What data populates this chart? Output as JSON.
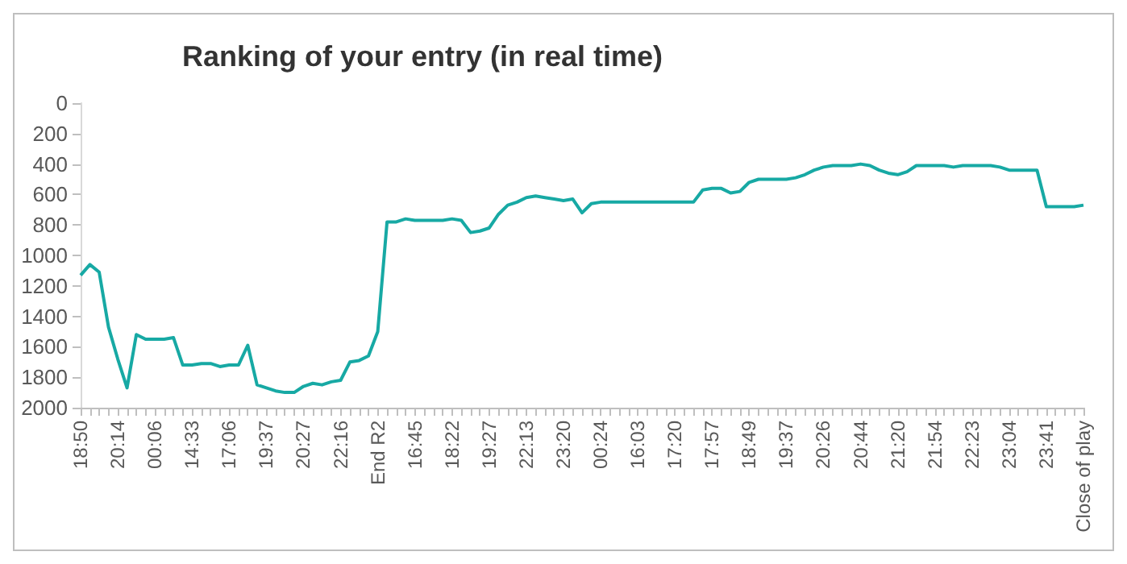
{
  "chart_data": {
    "type": "line",
    "title": "Ranking of your entry (in real time)",
    "categories": [
      "18:50",
      null,
      null,
      null,
      "20:14",
      null,
      null,
      null,
      "00:06",
      null,
      null,
      null,
      "14:33",
      null,
      null,
      null,
      "17:06",
      null,
      null,
      null,
      "19:37",
      null,
      null,
      null,
      "20:27",
      null,
      null,
      null,
      "22:16",
      null,
      null,
      null,
      "End R2",
      null,
      null,
      null,
      "16:45",
      null,
      null,
      null,
      "18:22",
      null,
      null,
      null,
      "19:27",
      null,
      null,
      null,
      "22:13",
      null,
      null,
      null,
      "23:20",
      null,
      null,
      null,
      "00:24",
      null,
      null,
      null,
      "16:03",
      null,
      null,
      null,
      "17:20",
      null,
      null,
      null,
      "17:57",
      null,
      null,
      null,
      "18:49",
      null,
      null,
      null,
      "19:37",
      null,
      null,
      null,
      "20:26",
      null,
      null,
      null,
      "20:44",
      null,
      null,
      null,
      "21:20",
      null,
      null,
      null,
      "21:54",
      null,
      null,
      null,
      "22:23",
      null,
      null,
      null,
      "23:04",
      null,
      null,
      null,
      "23:41",
      null,
      null,
      null,
      "Close of play"
    ],
    "values": [
      1130,
      1060,
      1110,
      1470,
      1680,
      1870,
      1520,
      1550,
      1550,
      1550,
      1540,
      1720,
      1720,
      1710,
      1710,
      1730,
      1720,
      1720,
      1590,
      1850,
      1870,
      1890,
      1900,
      1900,
      1860,
      1840,
      1850,
      1830,
      1820,
      1700,
      1690,
      1660,
      1500,
      780,
      780,
      760,
      770,
      770,
      770,
      770,
      760,
      770,
      850,
      840,
      820,
      730,
      670,
      650,
      620,
      610,
      620,
      630,
      640,
      630,
      720,
      660,
      650,
      650,
      650,
      650,
      650,
      650,
      650,
      650,
      650,
      650,
      650,
      570,
      560,
      560,
      590,
      580,
      520,
      500,
      500,
      500,
      500,
      490,
      470,
      440,
      420,
      410,
      410,
      410,
      400,
      410,
      440,
      460,
      470,
      450,
      410,
      410,
      410,
      410,
      420,
      410,
      410,
      410,
      410,
      420,
      440,
      440,
      440,
      440,
      680,
      680,
      680,
      680,
      670
    ],
    "color": "#17a9a4",
    "ylim": [
      2000,
      0
    ],
    "yticks": [
      0,
      200,
      400,
      600,
      800,
      1000,
      1200,
      1400,
      1600,
      1800,
      2000
    ]
  }
}
